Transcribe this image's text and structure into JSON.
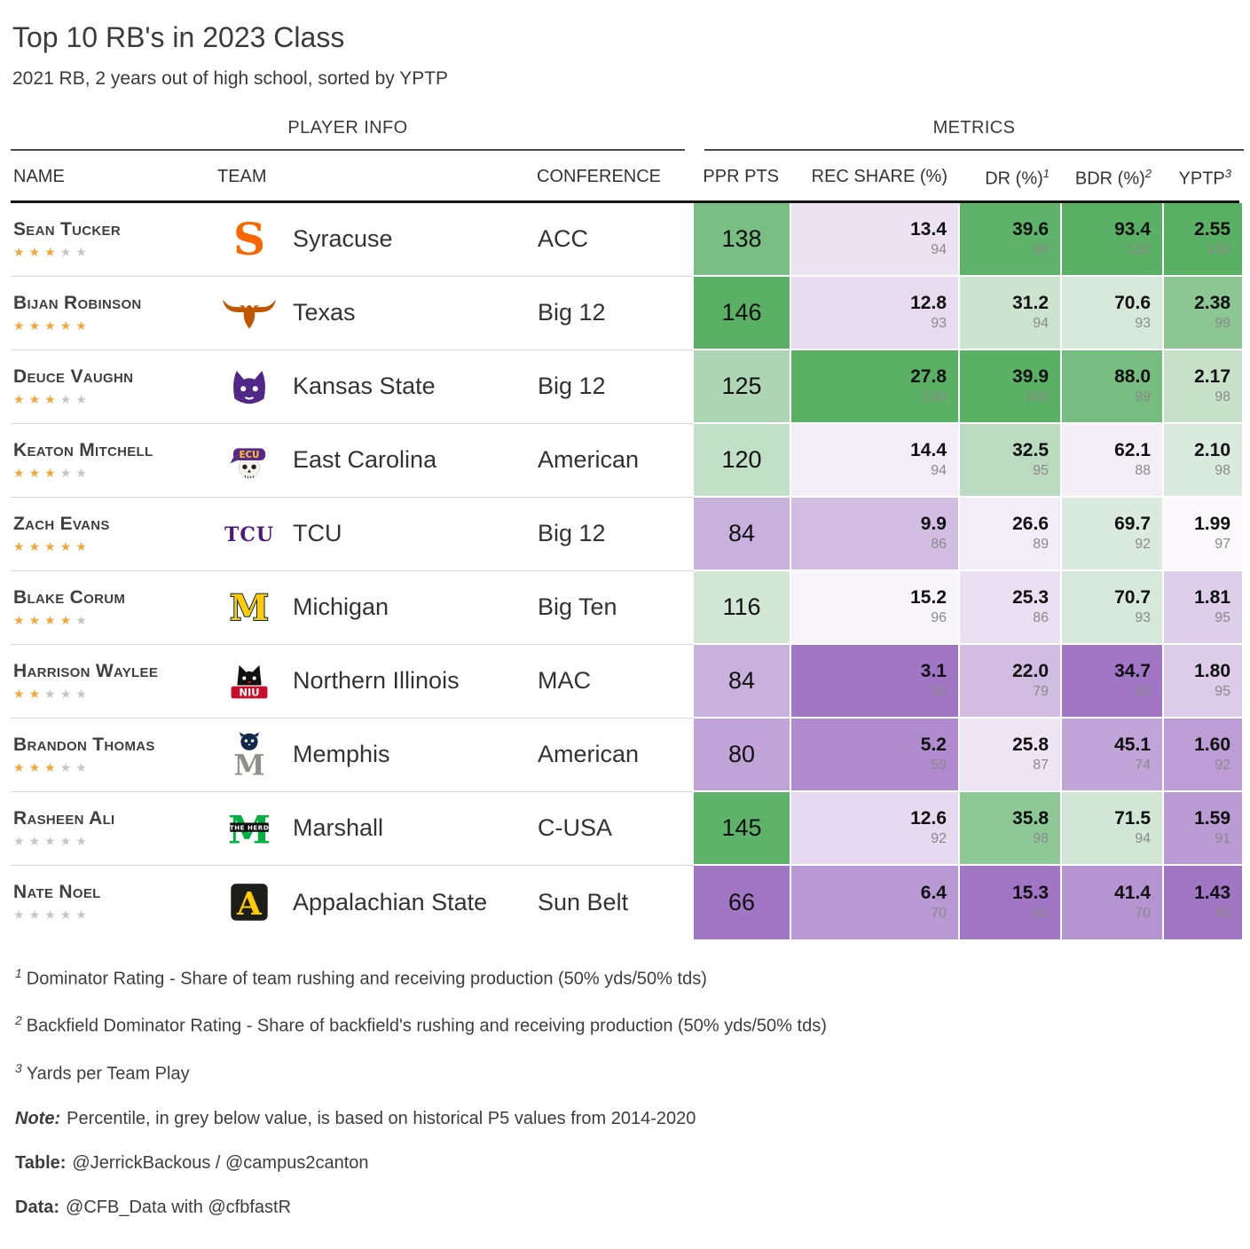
{
  "title": "Top 10 RB's in 2023 Class",
  "subtitle": "2021 RB, 2 years out of high school, sorted by YPTP",
  "header": {
    "spanners": {
      "player_info": "PLAYER INFO",
      "metrics": "METRICS"
    },
    "columns": {
      "name": "NAME",
      "team": "TEAM",
      "conference": "CONFERENCE",
      "ppr": "PPR PTS",
      "rec_share": "REC SHARE (%)",
      "dr": "DR (%)",
      "dr_sup": "1",
      "bdr": "BDR (%)",
      "bdr_sup": "2",
      "yptp": "YPTP",
      "yptp_sup": "3"
    }
  },
  "chart_data": {
    "type": "table",
    "title": "Top 10 RB's in 2023 Class",
    "subtitle": "2021 RB, 2 years out of high school, sorted by YPTP",
    "columns": [
      "NAME",
      "TEAM",
      "CONFERENCE",
      "PPR PTS",
      "REC SHARE (%)",
      "DR (%)",
      "BDR (%)",
      "YPTP"
    ],
    "percentile_note": "Percentile shown in grey below each metric value",
    "rows": [
      {
        "name": "Sean Tucker",
        "stars": 3,
        "team": "Syracuse",
        "logo": "syracuse-logo",
        "logo_text": "S",
        "conference": "ACC",
        "ppr_pts": 138,
        "rec_share": {
          "value": "13.4",
          "pct": 94
        },
        "dr": {
          "value": "39.6",
          "pct": 99
        },
        "bdr": {
          "value": "93.4",
          "pct": 100
        },
        "yptp": {
          "value": "2.55",
          "pct": 100
        }
      },
      {
        "name": "Bijan Robinson",
        "stars": 5,
        "team": "Texas",
        "logo": "texas-logo",
        "logo_text": "",
        "conference": "Big 12",
        "ppr_pts": 146,
        "rec_share": {
          "value": "12.8",
          "pct": 93
        },
        "dr": {
          "value": "31.2",
          "pct": 94
        },
        "bdr": {
          "value": "70.6",
          "pct": 93
        },
        "yptp": {
          "value": "2.38",
          "pct": 99
        }
      },
      {
        "name": "Deuce Vaughn",
        "stars": 3,
        "team": "Kansas State",
        "logo": "kansas-state-logo",
        "logo_text": "",
        "conference": "Big 12",
        "ppr_pts": 125,
        "rec_share": {
          "value": "27.8",
          "pct": 100
        },
        "dr": {
          "value": "39.9",
          "pct": 100
        },
        "bdr": {
          "value": "88.0",
          "pct": 99
        },
        "yptp": {
          "value": "2.17",
          "pct": 98
        }
      },
      {
        "name": "Keaton Mitchell",
        "stars": 3,
        "team": "East Carolina",
        "logo": "east-carolina-logo",
        "logo_text": "ECU",
        "conference": "American",
        "ppr_pts": 120,
        "rec_share": {
          "value": "14.4",
          "pct": 94
        },
        "dr": {
          "value": "32.5",
          "pct": 95
        },
        "bdr": {
          "value": "62.1",
          "pct": 88
        },
        "yptp": {
          "value": "2.10",
          "pct": 98
        }
      },
      {
        "name": "Zach Evans",
        "stars": 5,
        "team": "TCU",
        "logo": "tcu-logo",
        "logo_text": "TCU",
        "conference": "Big 12",
        "ppr_pts": 84,
        "rec_share": {
          "value": "9.9",
          "pct": 86
        },
        "dr": {
          "value": "26.6",
          "pct": 89
        },
        "bdr": {
          "value": "69.7",
          "pct": 92
        },
        "yptp": {
          "value": "1.99",
          "pct": 97
        }
      },
      {
        "name": "Blake Corum",
        "stars": 4,
        "team": "Michigan",
        "logo": "michigan-logo",
        "logo_text": "M",
        "conference": "Big Ten",
        "ppr_pts": 116,
        "rec_share": {
          "value": "15.2",
          "pct": 96
        },
        "dr": {
          "value": "25.3",
          "pct": 86
        },
        "bdr": {
          "value": "70.7",
          "pct": 93
        },
        "yptp": {
          "value": "1.81",
          "pct": 95
        }
      },
      {
        "name": "Harrison Waylee",
        "stars": 2,
        "team": "Northern Illinois",
        "logo": "northern-illinois-logo",
        "logo_text": "NIU",
        "conference": "MAC",
        "ppr_pts": 84,
        "rec_share": {
          "value": "3.1",
          "pct": 39
        },
        "dr": {
          "value": "22.0",
          "pct": 79
        },
        "bdr": {
          "value": "34.7",
          "pct": 60
        },
        "yptp": {
          "value": "1.80",
          "pct": 95
        }
      },
      {
        "name": "Brandon Thomas",
        "stars": 3,
        "team": "Memphis",
        "logo": "memphis-logo",
        "logo_text": "M",
        "conference": "American",
        "ppr_pts": 80,
        "rec_share": {
          "value": "5.2",
          "pct": 59
        },
        "dr": {
          "value": "25.8",
          "pct": 87
        },
        "bdr": {
          "value": "45.1",
          "pct": 74
        },
        "yptp": {
          "value": "1.60",
          "pct": 92
        }
      },
      {
        "name": "Rasheen Ali",
        "stars": 0,
        "team": "Marshall",
        "logo": "marshall-logo",
        "logo_text": "M",
        "logo_sub": "THE HERD",
        "conference": "C-USA",
        "ppr_pts": 145,
        "rec_share": {
          "value": "12.6",
          "pct": 92
        },
        "dr": {
          "value": "35.8",
          "pct": 98
        },
        "bdr": {
          "value": "71.5",
          "pct": 94
        },
        "yptp": {
          "value": "1.59",
          "pct": 91
        }
      },
      {
        "name": "Nate Noel",
        "stars": 0,
        "team": "Appalachian State",
        "logo": "appalachian-state-logo",
        "logo_text": "A",
        "conference": "Sun Belt",
        "ppr_pts": 66,
        "rec_share": {
          "value": "6.4",
          "pct": 70
        },
        "dr": {
          "value": "15.3",
          "pct": 61
        },
        "bdr": {
          "value": "41.4",
          "pct": 70
        },
        "yptp": {
          "value": "1.43",
          "pct": 88
        }
      }
    ]
  },
  "footnotes": [
    {
      "sup": "1",
      "text": "Dominator Rating - Share of team rushing and receiving production (50% yds/50% tds)"
    },
    {
      "sup": "2",
      "text": "Backfield Dominator Rating - Share of backfield's rushing and receiving production (50% yds/50% tds)"
    },
    {
      "sup": "3",
      "text": "Yards per Team Play"
    }
  ],
  "note": {
    "label": "Note:",
    "text": "Percentile, in grey below value, is based on historical P5 values from 2014-2020"
  },
  "credits": [
    {
      "label": "Table:",
      "text": "@JerrickBackous / @campus2canton"
    },
    {
      "label": "Data:",
      "text": "@CFB_Data with @cfbfastR"
    }
  ],
  "colors": {
    "scale_purple": "#A176C5",
    "scale_white": "#FAF8FB",
    "scale_green": "#5AB065",
    "star_filled": "#F2A73B",
    "star_empty": "#C6C6C6",
    "percentile_grey": "#8A8A8A"
  }
}
